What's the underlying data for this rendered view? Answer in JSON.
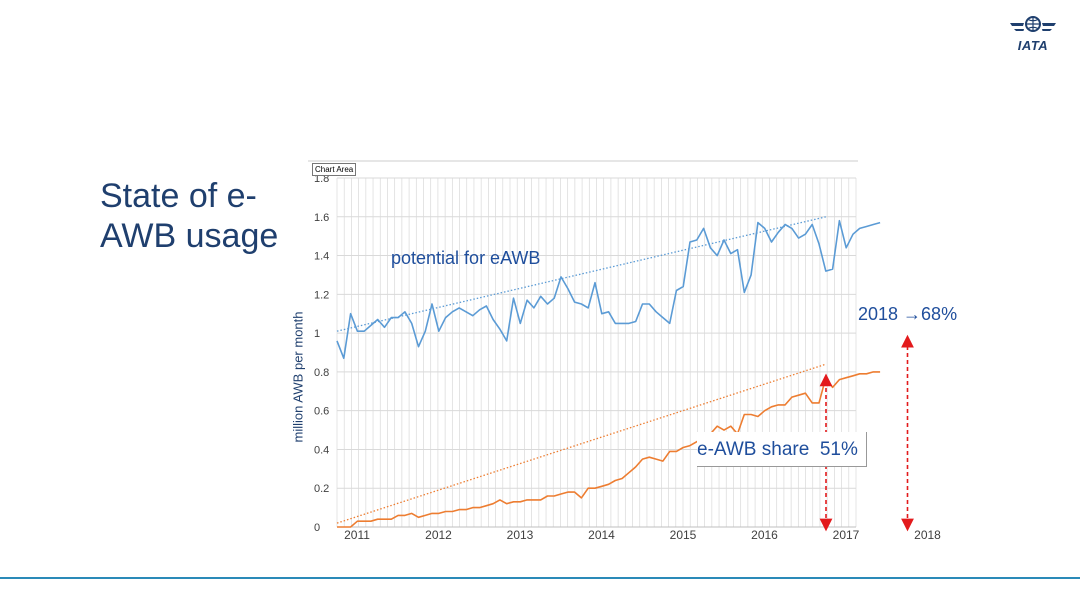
{
  "title": "State of e-AWB usage",
  "logo": {
    "text": "IATA",
    "icon": "iata-globe-icon"
  },
  "colors": {
    "title": "#1f3f6e",
    "series_potential": "#5b9bd5",
    "series_share": "#ed7d31",
    "arrow": "#e31a1c",
    "annotation": "#1f4e9c",
    "bottom_line": "#2a8ab8"
  },
  "chart_area_label": "Chart Area",
  "annotations": {
    "potential": "potential for eAWB",
    "share": "e-AWB share  51%",
    "projection": "2018 →68%"
  },
  "chart_data": {
    "type": "line",
    "xlabel": "",
    "ylabel": "million AWB per month",
    "ylim": [
      0,
      1.8
    ],
    "yticks": [
      0,
      0.2,
      0.4,
      0.6,
      0.8,
      1,
      1.2,
      1.4,
      1.6,
      1.8
    ],
    "ytick_labels": [
      "0",
      "0.2",
      "0.4",
      "0.6",
      "0.8",
      "1",
      "1.2",
      "1.4",
      "1.6",
      "1.8"
    ],
    "x_years": [
      "2011",
      "2012",
      "2013",
      "2014",
      "2015",
      "2016",
      "2017",
      "2018"
    ],
    "xlim": [
      2011,
      2018
    ],
    "grid": true,
    "legend": "none",
    "series": [
      {
        "x_start": 2011,
        "step": 0.0833,
        "values": [
          0.96,
          0.87,
          1.1,
          1.01,
          1.01,
          1.04,
          1.07,
          1.03,
          1.08,
          1.08,
          1.11,
          1.05,
          0.93,
          1.01,
          1.15,
          1.01,
          1.08,
          1.11,
          1.13,
          1.11,
          1.09,
          1.12,
          1.14,
          1.07,
          1.02,
          0.96,
          1.18,
          1.05,
          1.17,
          1.13,
          1.19,
          1.15,
          1.18,
          1.29,
          1.23,
          1.16,
          1.15,
          1.13,
          1.26,
          1.1,
          1.11,
          1.05,
          1.05,
          1.05,
          1.06,
          1.15,
          1.15,
          1.11,
          1.08,
          1.05,
          1.22,
          1.24,
          1.47,
          1.48,
          1.54,
          1.44,
          1.4,
          1.48,
          1.41,
          1.43,
          1.21,
          1.3,
          1.57,
          1.54,
          1.47,
          1.52,
          1.56,
          1.54,
          1.49,
          1.51,
          1.56,
          1.46,
          1.32,
          1.33,
          1.58,
          1.44,
          1.51,
          1.54,
          1.55,
          1.56,
          1.57
        ]
      },
      {
        "x_start": 2011,
        "step": 0.0833,
        "values": [
          0.0,
          0.0,
          0.0,
          0.03,
          0.03,
          0.03,
          0.04,
          0.04,
          0.04,
          0.06,
          0.06,
          0.07,
          0.05,
          0.06,
          0.07,
          0.07,
          0.08,
          0.08,
          0.09,
          0.09,
          0.1,
          0.1,
          0.11,
          0.12,
          0.14,
          0.12,
          0.13,
          0.13,
          0.14,
          0.14,
          0.14,
          0.16,
          0.16,
          0.17,
          0.18,
          0.18,
          0.15,
          0.2,
          0.2,
          0.21,
          0.22,
          0.24,
          0.25,
          0.28,
          0.31,
          0.35,
          0.36,
          0.35,
          0.34,
          0.39,
          0.39,
          0.41,
          0.42,
          0.44,
          0.46,
          0.48,
          0.52,
          0.5,
          0.52,
          0.48,
          0.58,
          0.58,
          0.57,
          0.6,
          0.62,
          0.63,
          0.63,
          0.67,
          0.68,
          0.69,
          0.64,
          0.64,
          0.77,
          0.72,
          0.76,
          0.77,
          0.78,
          0.79,
          0.79,
          0.8,
          0.8
        ]
      }
    ],
    "trendlines": [
      {
        "start": [
          2011,
          1.01
        ],
        "end": [
          2017,
          1.6
        ]
      },
      {
        "start": [
          2011,
          0.02
        ],
        "end": [
          2017,
          0.84
        ]
      }
    ],
    "markers": [
      {
        "x": 2017,
        "y": 0.8,
        "text": "51%"
      },
      {
        "x": 2018,
        "y": 1.0,
        "text": "68%"
      }
    ]
  }
}
